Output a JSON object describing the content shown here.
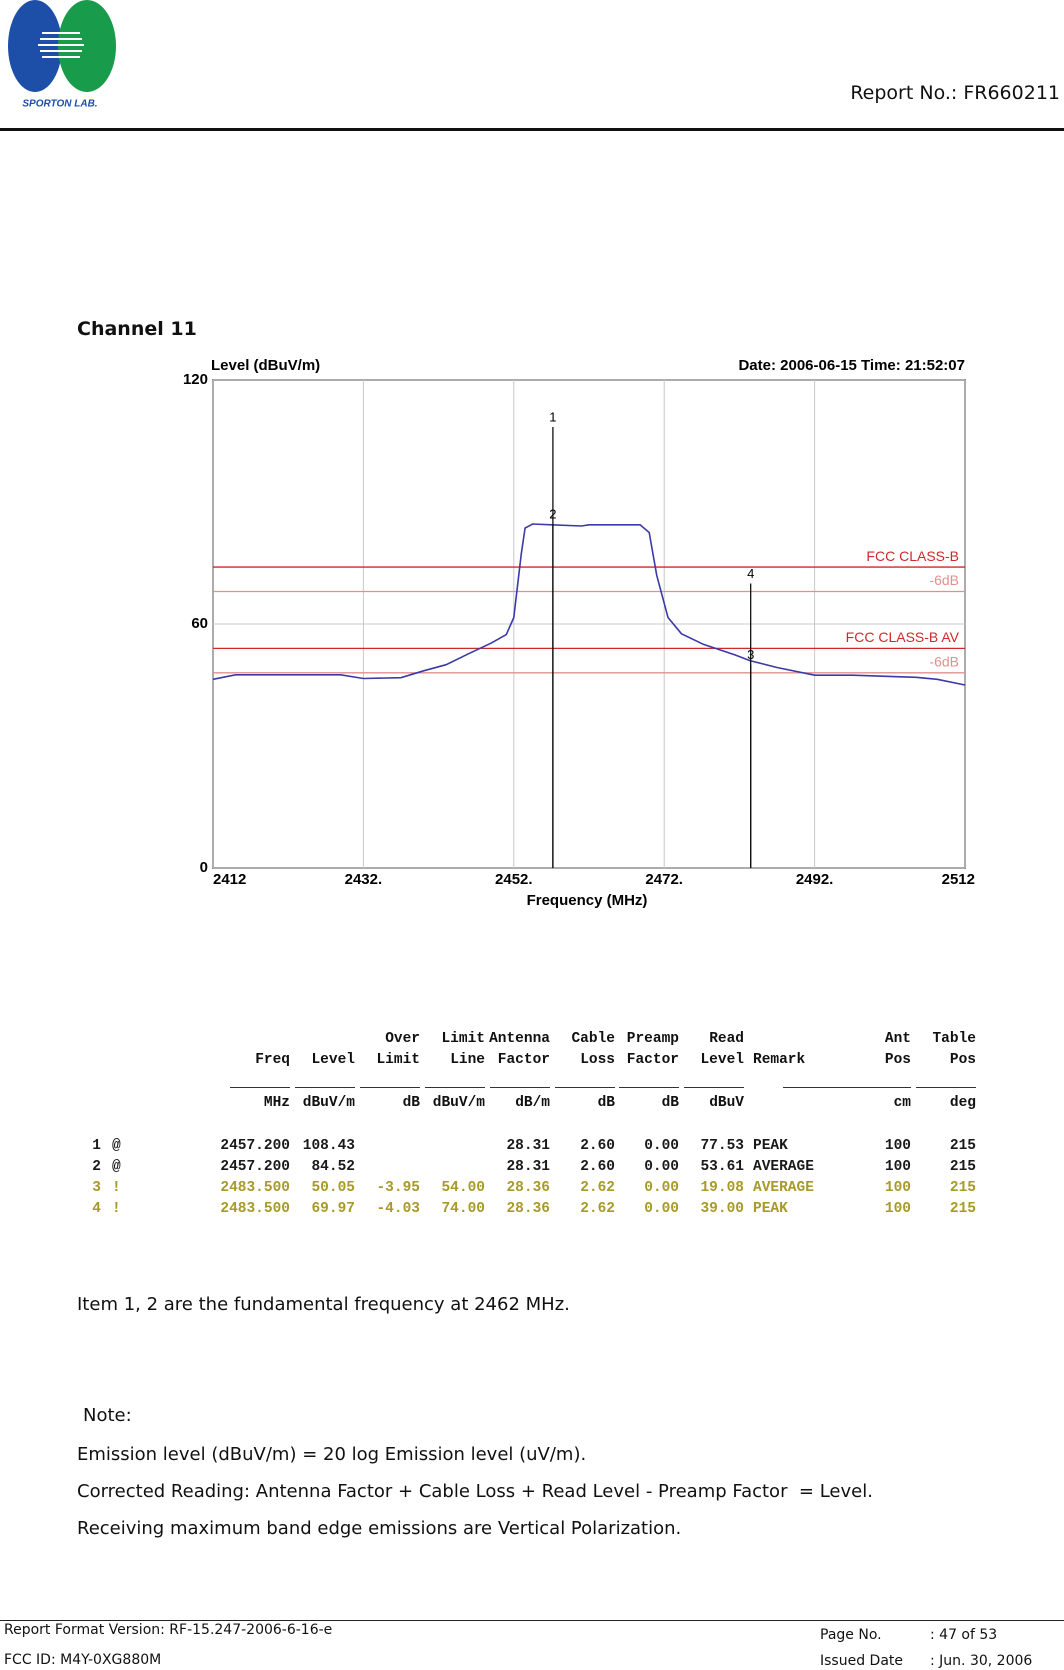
{
  "header": {
    "logo_text": "SPORTON LAB.",
    "report_no": "Report No.: FR660211"
  },
  "section_title": "Channel 11",
  "chart_data": {
    "type": "line",
    "y_label": "Level (dBuV/m)",
    "annotation": "Date: 2006-06-15  Time: 21:52:07",
    "x_label": "Frequency (MHz)",
    "xlim": [
      2412,
      2512
    ],
    "ylim": [
      0,
      120
    ],
    "xticks": [
      2412,
      {
        "value": 2432,
        "label": "2432."
      },
      {
        "value": 2452,
        "label": "2452."
      },
      {
        "value": 2472,
        "label": "2472."
      },
      {
        "value": 2492,
        "label": "2492."
      },
      2512
    ],
    "yticks": [
      0,
      60,
      120
    ],
    "grid": true,
    "color": "#3a3aa8",
    "x": [
      2412,
      2415,
      2429,
      2432,
      2437,
      2440,
      2443,
      2446,
      2449,
      2451,
      2452,
      2453,
      2453.5,
      2454.5,
      2457,
      2461,
      2462,
      2468.8,
      2470,
      2471,
      2472.5,
      2474.3,
      2477.2,
      2481.4,
      2483.4,
      2487,
      2492,
      2497,
      2505.5,
      2508.3,
      2512
    ],
    "values": [
      46.4,
      47.5,
      47.5,
      46.6,
      46.8,
      48.5,
      50,
      52.7,
      55.3,
      57.4,
      61.6,
      77.3,
      83.6,
      84.6,
      84.4,
      84.1,
      84.4,
      84.4,
      82.5,
      72,
      61.6,
      57.6,
      55,
      52.4,
      51,
      49.3,
      47.4,
      47.4,
      46.9,
      46.4,
      45
    ],
    "limit_lines": [
      {
        "label": "FCC CLASS-B",
        "value": 74,
        "color": "#cc2a2a"
      },
      {
        "label": "-6dB",
        "value": 68,
        "color": "#e09090"
      },
      {
        "label": "FCC CLASS-B  AV",
        "value": 54,
        "color": "#cc2a2a"
      },
      {
        "label": "-6dB",
        "value": 48,
        "color": "#e09090"
      }
    ],
    "markers": [
      {
        "label": "1",
        "x": 2457.2,
        "value": 108.43
      },
      {
        "label": "2",
        "x": 2457.2,
        "value": 84.52
      },
      {
        "label": "3",
        "x": 2483.5,
        "value": 50.05
      },
      {
        "label": "4",
        "x": 2483.5,
        "value": 69.97
      }
    ]
  },
  "table": {
    "columns": [
      {
        "head": [
          null,
          "Freq"
        ],
        "unit": "MHz"
      },
      {
        "head": [
          null,
          "Level"
        ],
        "unit": "dBuV/m"
      },
      {
        "head": [
          "Over",
          "Limit"
        ],
        "unit": "dB"
      },
      {
        "head": [
          "Limit",
          "Line"
        ],
        "unit": "dBuV/m"
      },
      {
        "head": [
          "Antenna",
          "Factor"
        ],
        "unit": "dB/m"
      },
      {
        "head": [
          "Cable",
          "Loss"
        ],
        "unit": "dB"
      },
      {
        "head": [
          "Preamp",
          "Factor"
        ],
        "unit": "dB"
      },
      {
        "head": [
          "Read",
          "Level"
        ],
        "unit": "dBuV"
      },
      {
        "head": [
          null,
          "Remark"
        ],
        "unit": null
      },
      {
        "head": [
          "Ant",
          "Pos"
        ],
        "unit": "cm"
      },
      {
        "head": [
          "Table",
          "Pos"
        ],
        "unit": "deg"
      }
    ],
    "rows": [
      {
        "no": "1",
        "flag": "@",
        "color": "#1a1a1a",
        "cells": [
          "2457.200",
          "108.43",
          null,
          null,
          "28.31",
          "2.60",
          "0.00",
          "77.53",
          "PEAK",
          "100",
          "215"
        ]
      },
      {
        "no": "2",
        "flag": "@",
        "color": "#1a1a1a",
        "cells": [
          "2457.200",
          "84.52",
          null,
          null,
          "28.31",
          "2.60",
          "0.00",
          "53.61",
          "AVERAGE",
          "100",
          "215"
        ]
      },
      {
        "no": "3",
        "flag": "!",
        "color": "#a89a28",
        "cells": [
          "2483.500",
          "50.05",
          "-3.95",
          "54.00",
          "28.36",
          "2.62",
          "0.00",
          "19.08",
          "AVERAGE",
          "100",
          "215"
        ]
      },
      {
        "no": "4",
        "flag": "!",
        "color": "#a89a28",
        "cells": [
          "2483.500",
          "69.97",
          "-4.03",
          "74.00",
          "28.36",
          "2.62",
          "0.00",
          "39.00",
          "PEAK",
          "100",
          "215"
        ]
      }
    ]
  },
  "item_note": "Item 1, 2 are the fundamental frequency at 2462 MHz.",
  "note": {
    "title": "Note:",
    "lines": [
      "Emission level (dBuV/m) = 20 log Emission level (uV/m).",
      "Corrected Reading: Antenna Factor + Cable Loss + Read Level - Preamp Factor  = Level.",
      "Receiving maximum band edge emissions are Vertical Polarization."
    ]
  },
  "footer": {
    "format_version": "Report Format Version: RF-15.247-2006-6-16-e",
    "fcc_id": "FCC ID: M4Y-0XG880M",
    "page_label": "Page No.",
    "page_value": ": 47 of 53",
    "date_label": "Issued Date",
    "date_value": ": Jun. 30, 2006"
  }
}
